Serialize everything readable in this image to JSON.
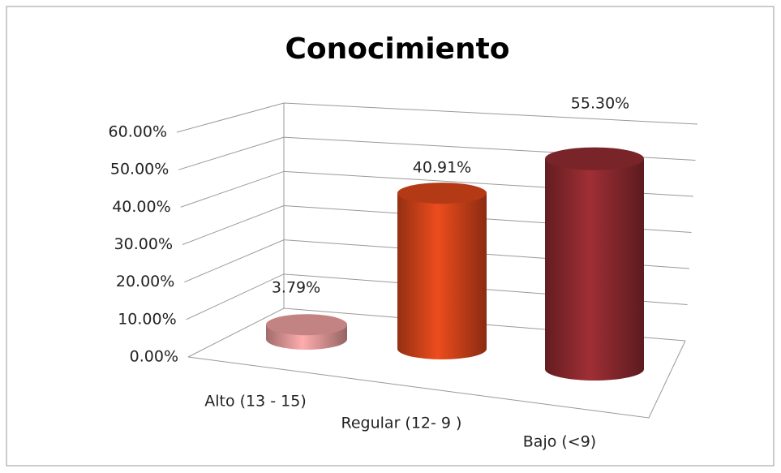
{
  "chart_data": {
    "type": "bar3d",
    "title": "Conocimiento",
    "categories": [
      "Alto (13 - 15)",
      "Regular (12- 9 )",
      "Bajo (<9)"
    ],
    "values": [
      3.79,
      40.91,
      55.3
    ],
    "value_labels": [
      "3.79%",
      "40.91%",
      "55.30%"
    ],
    "colors": [
      "#e59a9a",
      "#d4441a",
      "#8e2a2f"
    ],
    "ylim": [
      0,
      60
    ],
    "yticks": [
      {
        "value": 0,
        "label": "0.00%"
      },
      {
        "value": 10,
        "label": "10.00%"
      },
      {
        "value": 20,
        "label": "20.00%"
      },
      {
        "value": 30,
        "label": "30.00%"
      },
      {
        "value": 40,
        "label": "40.00%"
      },
      {
        "value": 50,
        "label": "50.00%"
      },
      {
        "value": 60,
        "label": "60.00%"
      }
    ],
    "grid": true
  }
}
